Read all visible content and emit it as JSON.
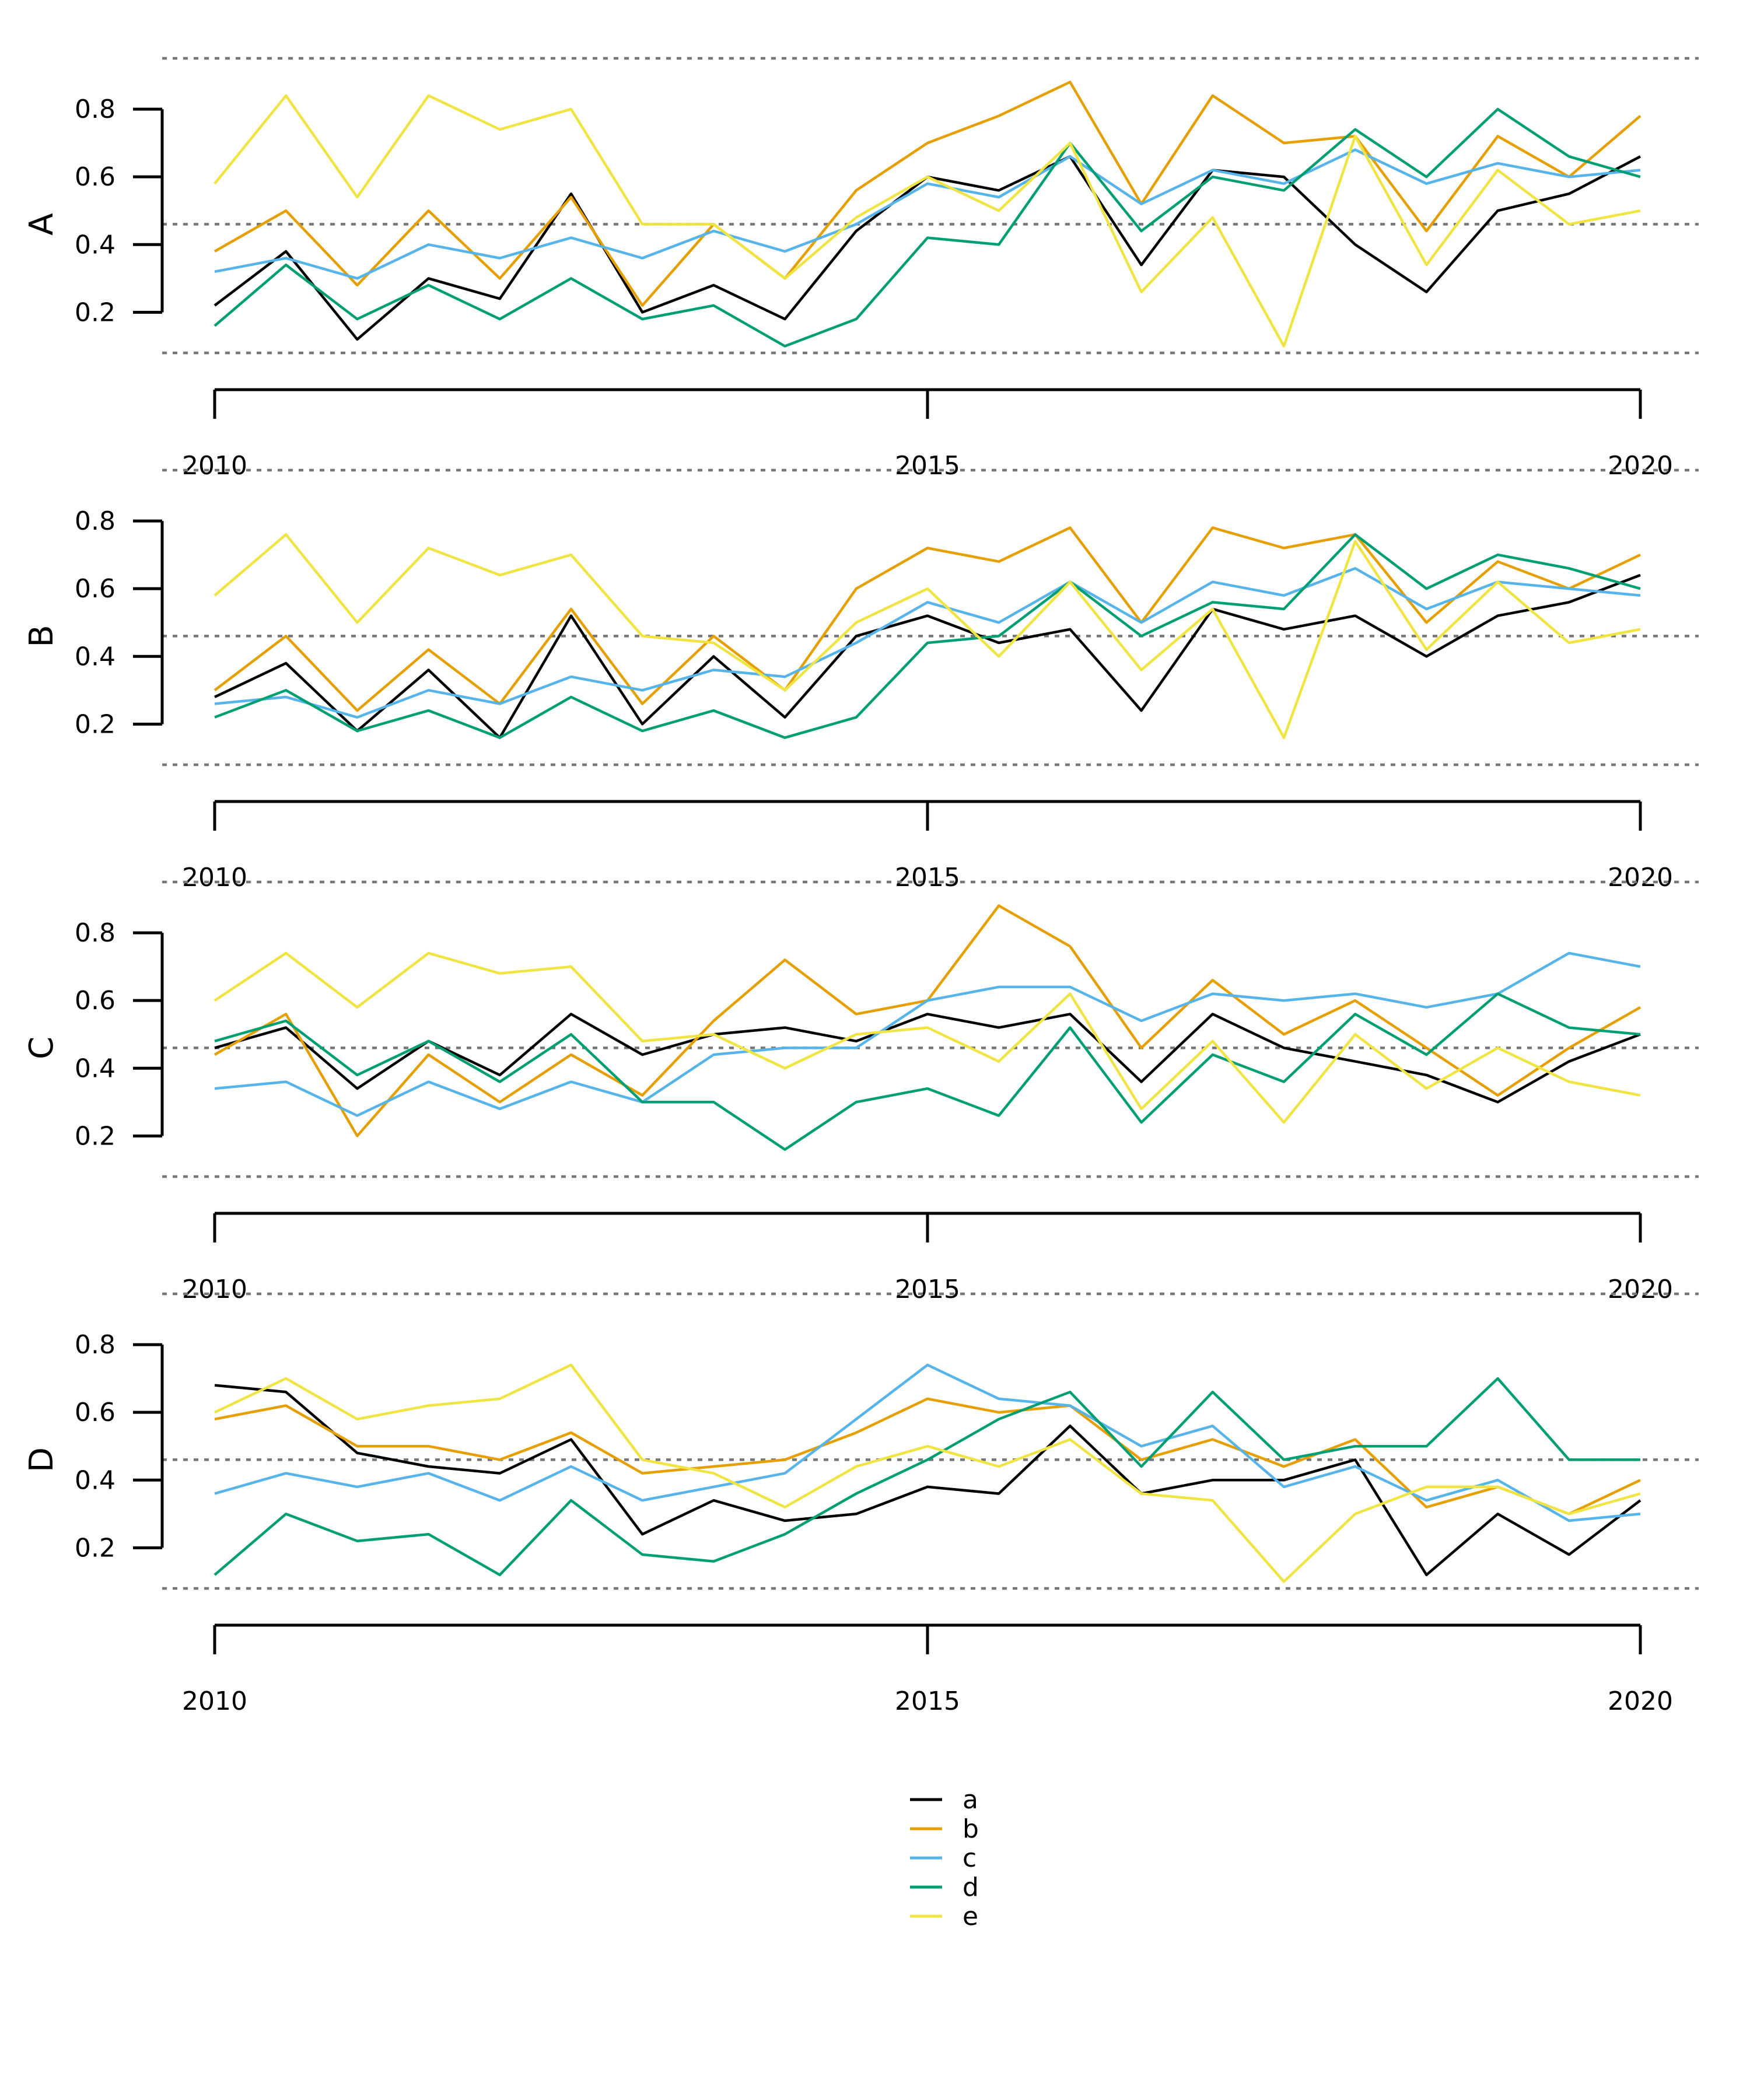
{
  "chart_data": {
    "type": "line",
    "xlim": [
      2010,
      2020
    ],
    "ylim": [
      0.08,
      0.95
    ],
    "yticks": [
      0.2,
      0.4,
      0.6,
      0.8
    ],
    "ytick_labels": [
      "0.2",
      "0.4",
      "0.6",
      "0.8"
    ],
    "xticks": [
      2010,
      2015,
      2020
    ],
    "xtick_labels": [
      "2010",
      "2015",
      "2020"
    ],
    "reference_lines": [
      0.08,
      0.46,
      0.95
    ],
    "legend": {
      "placement": "bottom-center",
      "entries": [
        {
          "name": "a",
          "color": "#000000"
        },
        {
          "name": "b",
          "color": "#E69F00"
        },
        {
          "name": "c",
          "color": "#56B4E9"
        },
        {
          "name": "d",
          "color": "#009E73"
        },
        {
          "name": "e",
          "color": "#F0E442"
        }
      ]
    },
    "panels": [
      {
        "label": "A",
        "x": [
          2010,
          2010.5,
          2011,
          2011.5,
          2012,
          2012.5,
          2013,
          2013.5,
          2014,
          2014.5,
          2015,
          2015.5,
          2016,
          2016.5,
          2017,
          2017.5,
          2018,
          2018.5,
          2019,
          2019.5,
          2020
        ],
        "series": [
          {
            "name": "a",
            "values": [
              0.22,
              0.38,
              0.12,
              0.3,
              0.24,
              0.55,
              0.2,
              0.28,
              0.18,
              0.44,
              0.6,
              0.56,
              0.66,
              0.34,
              0.62,
              0.6,
              0.4,
              0.26,
              0.5,
              0.55,
              0.66
            ]
          },
          {
            "name": "b",
            "values": [
              0.38,
              0.5,
              0.28,
              0.5,
              0.3,
              0.54,
              0.22,
              0.46,
              0.3,
              0.56,
              0.7,
              0.78,
              0.88,
              0.52,
              0.84,
              0.7,
              0.72,
              0.44,
              0.72,
              0.6,
              0.78
            ]
          },
          {
            "name": "c",
            "values": [
              0.32,
              0.36,
              0.3,
              0.4,
              0.36,
              0.42,
              0.36,
              0.44,
              0.38,
              0.46,
              0.58,
              0.54,
              0.66,
              0.52,
              0.62,
              0.58,
              0.68,
              0.58,
              0.64,
              0.6,
              0.62
            ]
          },
          {
            "name": "d",
            "values": [
              0.16,
              0.34,
              0.18,
              0.28,
              0.18,
              0.3,
              0.18,
              0.22,
              0.1,
              0.18,
              0.42,
              0.4,
              0.7,
              0.44,
              0.6,
              0.56,
              0.74,
              0.6,
              0.8,
              0.66,
              0.6
            ]
          },
          {
            "name": "e",
            "values": [
              0.58,
              0.84,
              0.54,
              0.84,
              0.74,
              0.8,
              0.46,
              0.46,
              0.3,
              0.48,
              0.6,
              0.5,
              0.7,
              0.26,
              0.48,
              0.1,
              0.72,
              0.34,
              0.62,
              0.46,
              0.5
            ]
          }
        ]
      },
      {
        "label": "B",
        "x": [
          2010,
          2010.5,
          2011,
          2011.5,
          2012,
          2012.5,
          2013,
          2013.5,
          2014,
          2014.5,
          2015,
          2015.5,
          2016,
          2016.5,
          2017,
          2017.5,
          2018,
          2018.5,
          2019,
          2019.5,
          2020
        ],
        "series": [
          {
            "name": "a",
            "values": [
              0.28,
              0.38,
              0.18,
              0.36,
              0.16,
              0.52,
              0.2,
              0.4,
              0.22,
              0.46,
              0.52,
              0.44,
              0.48,
              0.24,
              0.54,
              0.48,
              0.52,
              0.4,
              0.52,
              0.56,
              0.64
            ]
          },
          {
            "name": "b",
            "values": [
              0.3,
              0.46,
              0.24,
              0.42,
              0.26,
              0.54,
              0.26,
              0.46,
              0.3,
              0.6,
              0.72,
              0.68,
              0.78,
              0.5,
              0.78,
              0.72,
              0.76,
              0.5,
              0.68,
              0.6,
              0.7
            ]
          },
          {
            "name": "c",
            "values": [
              0.26,
              0.28,
              0.22,
              0.3,
              0.26,
              0.34,
              0.3,
              0.36,
              0.34,
              0.44,
              0.56,
              0.5,
              0.62,
              0.5,
              0.62,
              0.58,
              0.66,
              0.54,
              0.62,
              0.6,
              0.58
            ]
          },
          {
            "name": "d",
            "values": [
              0.22,
              0.3,
              0.18,
              0.24,
              0.16,
              0.28,
              0.18,
              0.24,
              0.16,
              0.22,
              0.44,
              0.46,
              0.62,
              0.46,
              0.56,
              0.54,
              0.76,
              0.6,
              0.7,
              0.66,
              0.6
            ]
          },
          {
            "name": "e",
            "values": [
              0.58,
              0.76,
              0.5,
              0.72,
              0.64,
              0.7,
              0.46,
              0.44,
              0.3,
              0.5,
              0.6,
              0.4,
              0.62,
              0.36,
              0.54,
              0.16,
              0.74,
              0.42,
              0.62,
              0.44,
              0.48
            ]
          }
        ]
      },
      {
        "label": "C",
        "x": [
          2010,
          2010.5,
          2011,
          2011.5,
          2012,
          2012.5,
          2013,
          2013.5,
          2014,
          2014.5,
          2015,
          2015.5,
          2016,
          2016.5,
          2017,
          2017.5,
          2018,
          2018.5,
          2019,
          2019.5,
          2020
        ],
        "series": [
          {
            "name": "a",
            "values": [
              0.46,
              0.52,
              0.34,
              0.48,
              0.38,
              0.56,
              0.44,
              0.5,
              0.52,
              0.48,
              0.56,
              0.52,
              0.56,
              0.36,
              0.56,
              0.46,
              0.42,
              0.38,
              0.3,
              0.42,
              0.5
            ]
          },
          {
            "name": "b",
            "values": [
              0.44,
              0.56,
              0.2,
              0.44,
              0.3,
              0.44,
              0.32,
              0.54,
              0.72,
              0.56,
              0.6,
              0.88,
              0.76,
              0.46,
              0.66,
              0.5,
              0.6,
              0.46,
              0.32,
              0.46,
              0.58
            ]
          },
          {
            "name": "c",
            "values": [
              0.34,
              0.36,
              0.26,
              0.36,
              0.28,
              0.36,
              0.3,
              0.44,
              0.46,
              0.46,
              0.6,
              0.64,
              0.64,
              0.54,
              0.62,
              0.6,
              0.62,
              0.58,
              0.62,
              0.74,
              0.7
            ]
          },
          {
            "name": "d",
            "values": [
              0.48,
              0.54,
              0.38,
              0.48,
              0.36,
              0.5,
              0.3,
              0.3,
              0.16,
              0.3,
              0.34,
              0.26,
              0.52,
              0.24,
              0.44,
              0.36,
              0.56,
              0.44,
              0.62,
              0.52,
              0.5
            ]
          },
          {
            "name": "e",
            "values": [
              0.6,
              0.74,
              0.58,
              0.74,
              0.68,
              0.7,
              0.48,
              0.5,
              0.4,
              0.5,
              0.52,
              0.42,
              0.62,
              0.28,
              0.48,
              0.24,
              0.5,
              0.34,
              0.46,
              0.36,
              0.32
            ]
          }
        ]
      },
      {
        "label": "D",
        "x": [
          2010,
          2010.5,
          2011,
          2011.5,
          2012,
          2012.5,
          2013,
          2013.5,
          2014,
          2014.5,
          2015,
          2015.5,
          2016,
          2016.5,
          2017,
          2017.5,
          2018,
          2018.5,
          2019,
          2019.5,
          2020
        ],
        "series": [
          {
            "name": "a",
            "values": [
              0.68,
              0.66,
              0.48,
              0.44,
              0.42,
              0.52,
              0.24,
              0.34,
              0.28,
              0.3,
              0.38,
              0.36,
              0.56,
              0.36,
              0.4,
              0.4,
              0.46,
              0.12,
              0.3,
              0.18,
              0.34
            ]
          },
          {
            "name": "b",
            "values": [
              0.58,
              0.62,
              0.5,
              0.5,
              0.46,
              0.54,
              0.42,
              0.44,
              0.46,
              0.54,
              0.64,
              0.6,
              0.62,
              0.46,
              0.52,
              0.44,
              0.52,
              0.32,
              0.38,
              0.3,
              0.4
            ]
          },
          {
            "name": "c",
            "values": [
              0.36,
              0.42,
              0.38,
              0.42,
              0.34,
              0.44,
              0.34,
              0.38,
              0.42,
              0.58,
              0.74,
              0.64,
              0.62,
              0.5,
              0.56,
              0.38,
              0.44,
              0.34,
              0.4,
              0.28,
              0.3
            ]
          },
          {
            "name": "d",
            "values": [
              0.12,
              0.3,
              0.22,
              0.24,
              0.12,
              0.34,
              0.18,
              0.16,
              0.24,
              0.36,
              0.46,
              0.58,
              0.66,
              0.44,
              0.66,
              0.46,
              0.5,
              0.5,
              0.7,
              0.46,
              0.46
            ]
          },
          {
            "name": "e",
            "values": [
              0.6,
              0.7,
              0.58,
              0.62,
              0.64,
              0.74,
              0.46,
              0.42,
              0.32,
              0.44,
              0.5,
              0.44,
              0.52,
              0.36,
              0.34,
              0.1,
              0.3,
              0.38,
              0.38,
              0.3,
              0.36
            ]
          }
        ]
      }
    ]
  }
}
